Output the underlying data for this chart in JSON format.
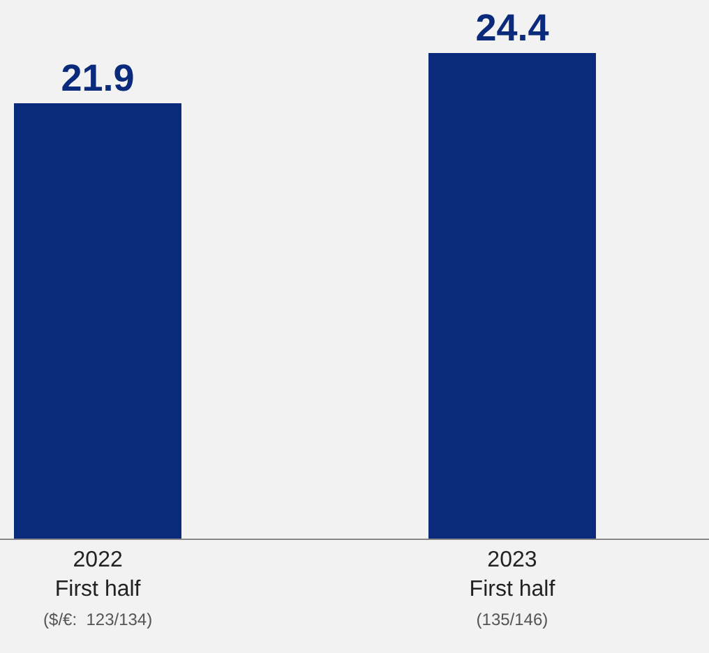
{
  "chart_data": {
    "type": "bar",
    "categories": [
      "2022\nFirst half\n($/€:  123/134)",
      "2023\nFirst half\n(135/146)"
    ],
    "values": [
      21.9,
      24.4
    ],
    "color": "#0a2a7c",
    "data_labels": true,
    "grid": false,
    "legend": false
  }
}
